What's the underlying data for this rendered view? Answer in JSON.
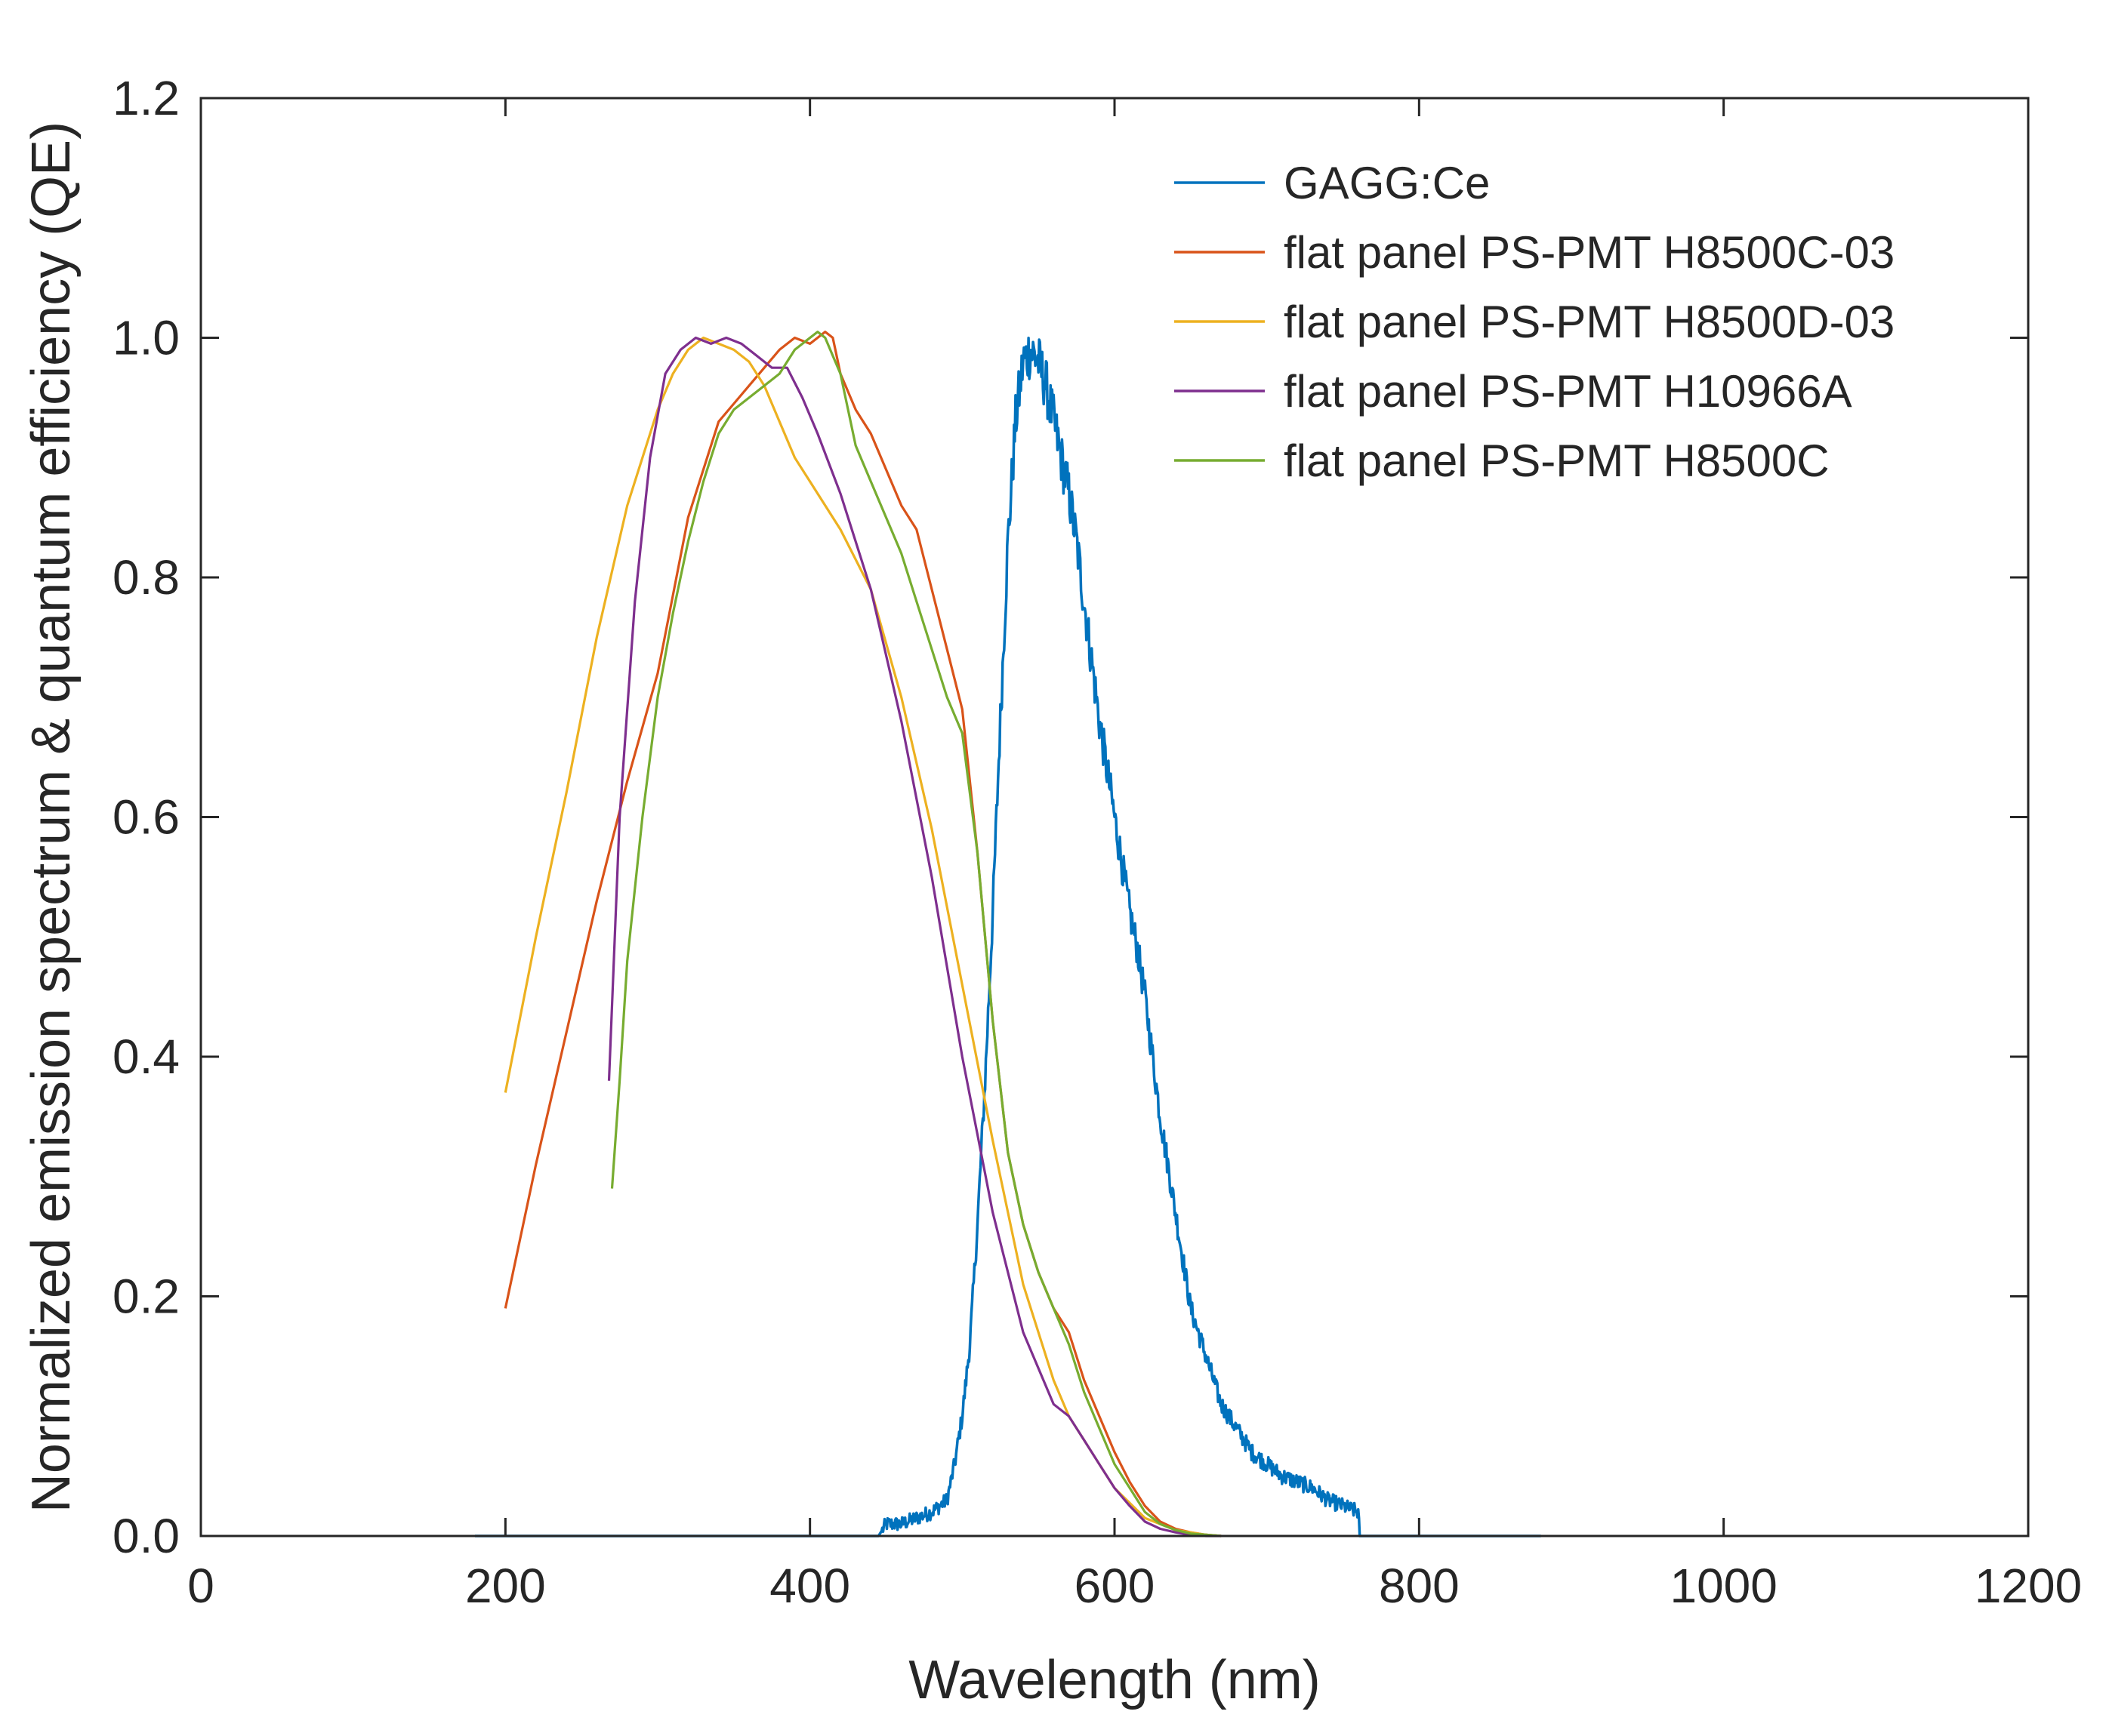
{
  "chart_data": {
    "type": "line",
    "title": "",
    "xlabel": "Wavelength (nm)",
    "ylabel": "Normalized emission spectrum & quantum efficiency (QE)",
    "xlim": [
      0,
      1200
    ],
    "ylim": [
      0,
      1.2
    ],
    "xticks": [
      0,
      200,
      400,
      600,
      800,
      1000,
      1200
    ],
    "xtick_labels": [
      "0",
      "200",
      "400",
      "600",
      "800",
      "1000",
      "1200"
    ],
    "yticks": [
      0,
      0.2,
      0.4,
      0.6,
      0.8,
      1.0,
      1.2
    ],
    "ytick_labels": [
      "0.0",
      "0.2",
      "0.4",
      "0.6",
      "0.8",
      "1.0",
      "1.2"
    ],
    "grid": false,
    "legend_position": "top-right",
    "series": [
      {
        "name": "GAGG:Ce",
        "color": "#0072BD",
        "noisy": true,
        "x": [
          180,
          300,
          400,
          445,
          450,
          460,
          470,
          480,
          490,
          495,
          500,
          505,
          510,
          515,
          520,
          525,
          530,
          535,
          540,
          545,
          550,
          555,
          560,
          565,
          570,
          575,
          580,
          585,
          590,
          595,
          600,
          605,
          610,
          615,
          620,
          625,
          630,
          635,
          640,
          645,
          650,
          660,
          670,
          680,
          690,
          700,
          710,
          720,
          730,
          740,
          750,
          760,
          761,
          800,
          880
        ],
        "y": [
          0,
          0,
          0,
          0,
          0.01,
          0.01,
          0.015,
          0.02,
          0.03,
          0.06,
          0.1,
          0.16,
          0.26,
          0.38,
          0.52,
          0.68,
          0.83,
          0.93,
          0.98,
          0.99,
          0.98,
          0.96,
          0.93,
          0.9,
          0.87,
          0.83,
          0.78,
          0.73,
          0.68,
          0.64,
          0.6,
          0.56,
          0.52,
          0.49,
          0.45,
          0.4,
          0.35,
          0.31,
          0.27,
          0.23,
          0.19,
          0.15,
          0.11,
          0.09,
          0.07,
          0.06,
          0.05,
          0.045,
          0.04,
          0.03,
          0.025,
          0.02,
          0,
          0,
          0
        ]
      },
      {
        "name": "flat panel PS-PMT H8500C-03",
        "color": "#D95319",
        "noisy": false,
        "x": [
          200,
          210,
          220,
          240,
          260,
          280,
          300,
          320,
          340,
          360,
          380,
          390,
          400,
          410,
          415,
          420,
          430,
          440,
          450,
          460,
          470,
          480,
          490,
          500,
          510,
          520,
          530,
          540,
          550,
          560,
          570,
          580,
          590,
          600,
          610,
          620,
          630,
          640,
          650,
          660,
          670
        ],
        "y": [
          0.19,
          0.25,
          0.31,
          0.42,
          0.53,
          0.63,
          0.72,
          0.85,
          0.93,
          0.96,
          0.99,
          1.0,
          0.995,
          1.005,
          1.0,
          0.97,
          0.94,
          0.92,
          0.89,
          0.86,
          0.84,
          0.79,
          0.74,
          0.69,
          0.57,
          0.43,
          0.32,
          0.26,
          0.22,
          0.19,
          0.17,
          0.13,
          0.1,
          0.07,
          0.045,
          0.025,
          0.012,
          0.006,
          0.003,
          0.001,
          0
        ]
      },
      {
        "name": "flat panel PS-PMT H8500D-03",
        "color": "#EDB120",
        "noisy": false,
        "x": [
          200,
          220,
          240,
          260,
          280,
          300,
          310,
          320,
          330,
          340,
          350,
          360,
          370,
          380,
          390,
          400,
          420,
          440,
          460,
          480,
          500,
          520,
          540,
          560,
          570,
          580,
          590,
          600,
          620,
          640,
          660,
          670
        ],
        "y": [
          0.37,
          0.5,
          0.62,
          0.75,
          0.86,
          0.94,
          0.97,
          0.99,
          1.0,
          0.995,
          0.99,
          0.98,
          0.96,
          0.93,
          0.9,
          0.88,
          0.84,
          0.79,
          0.7,
          0.59,
          0.46,
          0.33,
          0.21,
          0.13,
          0.1,
          0.08,
          0.06,
          0.04,
          0.015,
          0.005,
          0.001,
          0
        ]
      },
      {
        "name": "flat panel PS-PMT H10966A",
        "color": "#7E2F8E",
        "noisy": false,
        "x": [
          268,
          275,
          285,
          295,
          305,
          315,
          325,
          335,
          345,
          355,
          365,
          375,
          385,
          395,
          405,
          420,
          440,
          460,
          480,
          500,
          520,
          540,
          560,
          570,
          580,
          590,
          600,
          610,
          620,
          630,
          640,
          650,
          660,
          670
        ],
        "y": [
          0.38,
          0.6,
          0.78,
          0.9,
          0.97,
          0.99,
          1.0,
          0.995,
          1.0,
          0.995,
          0.985,
          0.975,
          0.975,
          0.95,
          0.92,
          0.87,
          0.79,
          0.68,
          0.55,
          0.4,
          0.27,
          0.17,
          0.11,
          0.1,
          0.08,
          0.06,
          0.04,
          0.025,
          0.012,
          0.006,
          0.003,
          0.001,
          0,
          0
        ]
      },
      {
        "name": "flat panel PS-PMT H8500C",
        "color": "#77AC30",
        "noisy": false,
        "x": [
          270,
          275,
          280,
          290,
          300,
          310,
          320,
          330,
          340,
          350,
          360,
          370,
          380,
          390,
          400,
          405,
          410,
          420,
          430,
          440,
          450,
          460,
          470,
          480,
          490,
          500,
          510,
          520,
          530,
          540,
          550,
          560,
          570,
          580,
          590,
          600,
          610,
          620,
          630,
          640,
          650,
          660,
          670
        ],
        "y": [
          0.29,
          0.38,
          0.48,
          0.6,
          0.7,
          0.77,
          0.83,
          0.88,
          0.92,
          0.94,
          0.95,
          0.96,
          0.97,
          0.99,
          1.0,
          1.005,
          1.0,
          0.97,
          0.91,
          0.88,
          0.85,
          0.82,
          0.78,
          0.74,
          0.7,
          0.67,
          0.57,
          0.43,
          0.32,
          0.26,
          0.22,
          0.19,
          0.16,
          0.12,
          0.09,
          0.06,
          0.04,
          0.02,
          0.01,
          0.005,
          0.002,
          0.001,
          0
        ]
      }
    ]
  }
}
